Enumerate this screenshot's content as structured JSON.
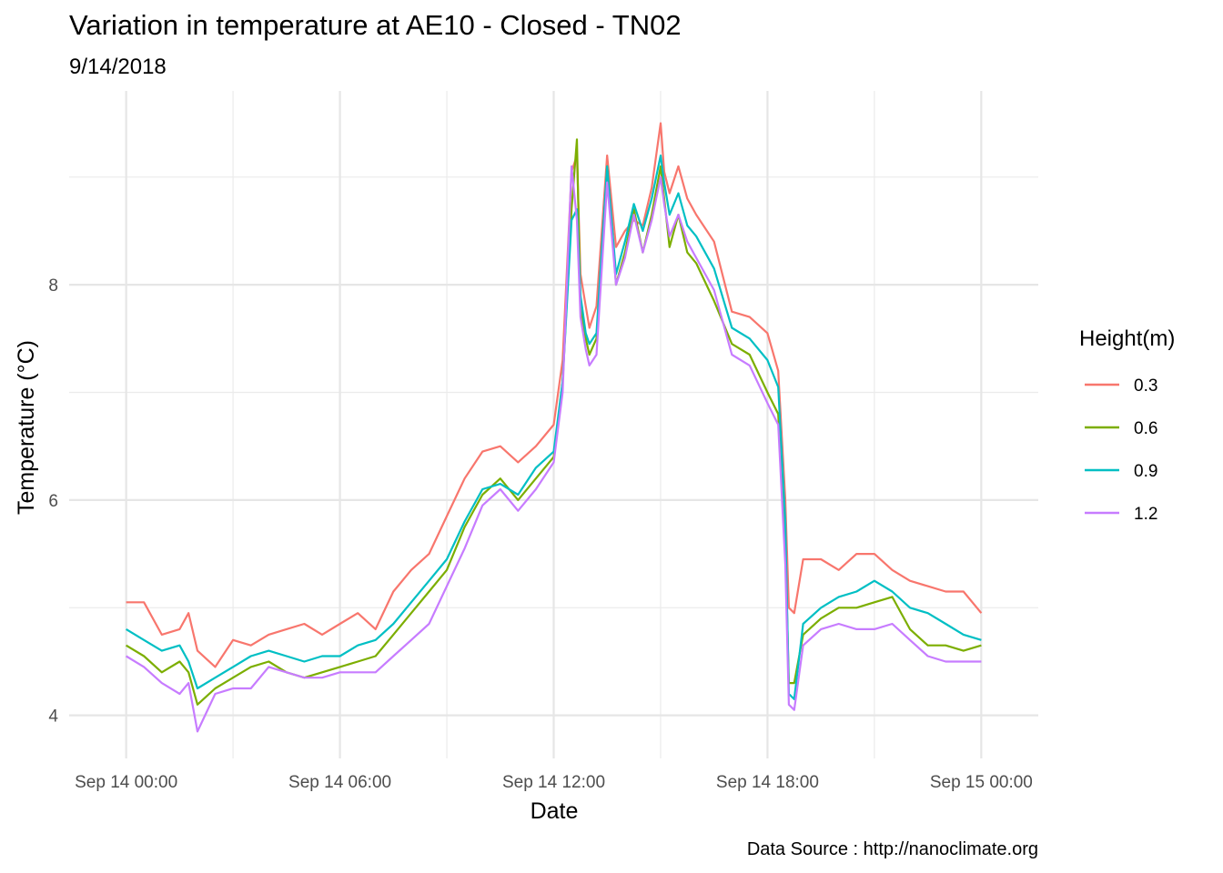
{
  "chart_data": {
    "type": "line",
    "title": "Variation in temperature at AE10 - Closed - TN02",
    "subtitle": "9/14/2018",
    "xlabel": "Date",
    "ylabel": "Temperature (°C)",
    "caption": "Data Source : http://nanoclimate.org",
    "x_unit": "hours since Sep 14 00:00",
    "xlim": [
      -1.6,
      25.6
    ],
    "ylim": [
      3.6,
      9.8
    ],
    "grid": true,
    "legend_position": "right",
    "legend_title": "Height(m)",
    "x_ticks": [
      {
        "value": 0,
        "label": "Sep 14 00:00"
      },
      {
        "value": 6,
        "label": "Sep 14 06:00"
      },
      {
        "value": 12,
        "label": "Sep 14 12:00"
      },
      {
        "value": 18,
        "label": "Sep 14 18:00"
      },
      {
        "value": 24,
        "label": "Sep 15 00:00"
      }
    ],
    "y_ticks": [
      {
        "value": 4,
        "label": "4"
      },
      {
        "value": 6,
        "label": "6"
      },
      {
        "value": 8,
        "label": "8"
      }
    ],
    "series": [
      {
        "name": "0.3",
        "color": "#F8766D",
        "x": [
          0,
          0.5,
          1,
          1.5,
          1.75,
          2,
          2.5,
          3,
          3.5,
          4,
          4.5,
          5,
          5.5,
          6,
          6.5,
          7,
          7.5,
          8,
          8.5,
          9,
          9.5,
          10,
          10.5,
          11,
          11.5,
          12,
          12.25,
          12.5,
          12.65,
          12.75,
          12.9,
          13,
          13.2,
          13.5,
          13.75,
          14,
          14.25,
          14.5,
          14.75,
          15,
          15.1,
          15.25,
          15.5,
          15.75,
          16,
          16.5,
          17,
          17.5,
          18,
          18.3,
          18.5,
          18.6,
          18.75,
          19,
          19.5,
          20,
          20.5,
          21,
          21.5,
          22,
          22.5,
          23,
          23.5,
          24
        ],
        "y": [
          5.05,
          5.05,
          4.75,
          4.8,
          4.95,
          4.6,
          4.45,
          4.7,
          4.65,
          4.75,
          4.8,
          4.85,
          4.75,
          4.85,
          4.95,
          4.8,
          5.15,
          5.35,
          5.5,
          5.85,
          6.2,
          6.45,
          6.5,
          6.35,
          6.5,
          6.7,
          7.3,
          9.05,
          9.2,
          8.1,
          7.8,
          7.6,
          7.8,
          9.2,
          8.35,
          8.5,
          8.6,
          8.55,
          8.9,
          9.5,
          9.05,
          8.85,
          9.1,
          8.8,
          8.65,
          8.4,
          7.75,
          7.7,
          7.55,
          7.2,
          6.0,
          5.0,
          4.95,
          5.45,
          5.45,
          5.35,
          5.5,
          5.5,
          5.35,
          5.25,
          5.2,
          5.15,
          5.15,
          4.95
        ]
      },
      {
        "name": "0.6",
        "color": "#7CAE00",
        "x": [
          0,
          0.5,
          1,
          1.5,
          1.75,
          2,
          2.5,
          3,
          3.5,
          4,
          4.5,
          5,
          5.5,
          6,
          6.5,
          7,
          7.5,
          8,
          8.5,
          9,
          9.5,
          10,
          10.5,
          11,
          11.5,
          12,
          12.25,
          12.5,
          12.65,
          12.75,
          12.9,
          13,
          13.2,
          13.5,
          13.75,
          14,
          14.25,
          14.5,
          14.75,
          15,
          15.1,
          15.25,
          15.5,
          15.75,
          16,
          16.5,
          17,
          17.5,
          18,
          18.3,
          18.5,
          18.6,
          18.75,
          19,
          19.5,
          20,
          20.5,
          21,
          21.5,
          22,
          22.5,
          23,
          23.5,
          24
        ],
        "y": [
          4.65,
          4.55,
          4.4,
          4.5,
          4.4,
          4.1,
          4.25,
          4.35,
          4.45,
          4.5,
          4.4,
          4.35,
          4.4,
          4.45,
          4.5,
          4.55,
          4.75,
          4.95,
          5.15,
          5.35,
          5.75,
          6.05,
          6.2,
          6.0,
          6.2,
          6.4,
          7.1,
          8.7,
          9.35,
          7.8,
          7.5,
          7.35,
          7.5,
          9.1,
          8.0,
          8.3,
          8.7,
          8.3,
          8.65,
          9.1,
          8.8,
          8.35,
          8.65,
          8.3,
          8.2,
          7.85,
          7.45,
          7.35,
          7.0,
          6.8,
          5.6,
          4.3,
          4.3,
          4.75,
          4.9,
          5.0,
          5.0,
          5.05,
          5.1,
          4.8,
          4.65,
          4.65,
          4.6,
          4.65
        ]
      },
      {
        "name": "0.9",
        "color": "#00BFC4",
        "x": [
          0,
          0.5,
          1,
          1.5,
          1.75,
          2,
          2.5,
          3,
          3.5,
          4,
          4.5,
          5,
          5.5,
          6,
          6.5,
          7,
          7.5,
          8,
          8.5,
          9,
          9.5,
          10,
          10.5,
          11,
          11.5,
          12,
          12.25,
          12.5,
          12.65,
          12.75,
          12.9,
          13,
          13.2,
          13.5,
          13.75,
          14,
          14.25,
          14.5,
          14.75,
          15,
          15.1,
          15.25,
          15.5,
          15.75,
          16,
          16.5,
          17,
          17.5,
          18,
          18.3,
          18.5,
          18.6,
          18.75,
          19,
          19.5,
          20,
          20.5,
          21,
          21.5,
          22,
          22.5,
          23,
          23.5,
          24
        ],
        "y": [
          4.8,
          4.7,
          4.6,
          4.65,
          4.5,
          4.25,
          4.35,
          4.45,
          4.55,
          4.6,
          4.55,
          4.5,
          4.55,
          4.55,
          4.65,
          4.7,
          4.85,
          5.05,
          5.25,
          5.45,
          5.8,
          6.1,
          6.15,
          6.05,
          6.3,
          6.45,
          7.1,
          8.6,
          8.7,
          7.9,
          7.55,
          7.45,
          7.55,
          9.1,
          8.1,
          8.4,
          8.75,
          8.5,
          8.8,
          9.2,
          8.95,
          8.65,
          8.85,
          8.55,
          8.45,
          8.15,
          7.6,
          7.5,
          7.3,
          7.05,
          5.8,
          4.2,
          4.15,
          4.85,
          5.0,
          5.1,
          5.15,
          5.25,
          5.15,
          5.0,
          4.95,
          4.85,
          4.75,
          4.7
        ]
      },
      {
        "name": "1.2",
        "color": "#C77CFF",
        "x": [
          0,
          0.5,
          1,
          1.5,
          1.75,
          2,
          2.5,
          3,
          3.5,
          4,
          4.5,
          5,
          5.5,
          6,
          6.5,
          7,
          7.5,
          8,
          8.5,
          9,
          9.5,
          10,
          10.5,
          11,
          11.5,
          12,
          12.25,
          12.5,
          12.65,
          12.75,
          12.9,
          13,
          13.2,
          13.5,
          13.75,
          14,
          14.25,
          14.5,
          14.75,
          15,
          15.1,
          15.25,
          15.5,
          15.75,
          16,
          16.5,
          17,
          17.5,
          18,
          18.3,
          18.5,
          18.6,
          18.75,
          19,
          19.5,
          20,
          20.5,
          21,
          21.5,
          22,
          22.5,
          23,
          23.5,
          24
        ],
        "y": [
          4.55,
          4.45,
          4.3,
          4.2,
          4.3,
          3.85,
          4.2,
          4.25,
          4.25,
          4.45,
          4.4,
          4.35,
          4.35,
          4.4,
          4.4,
          4.4,
          4.55,
          4.7,
          4.85,
          5.2,
          5.55,
          5.95,
          6.1,
          5.9,
          6.1,
          6.35,
          7.0,
          9.1,
          8.6,
          7.7,
          7.4,
          7.25,
          7.35,
          8.95,
          8.0,
          8.25,
          8.65,
          8.3,
          8.6,
          9.0,
          8.75,
          8.45,
          8.65,
          8.4,
          8.25,
          7.95,
          7.35,
          7.25,
          6.9,
          6.7,
          5.4,
          4.1,
          4.05,
          4.65,
          4.8,
          4.85,
          4.8,
          4.8,
          4.85,
          4.7,
          4.55,
          4.5,
          4.5,
          4.5
        ]
      }
    ]
  }
}
